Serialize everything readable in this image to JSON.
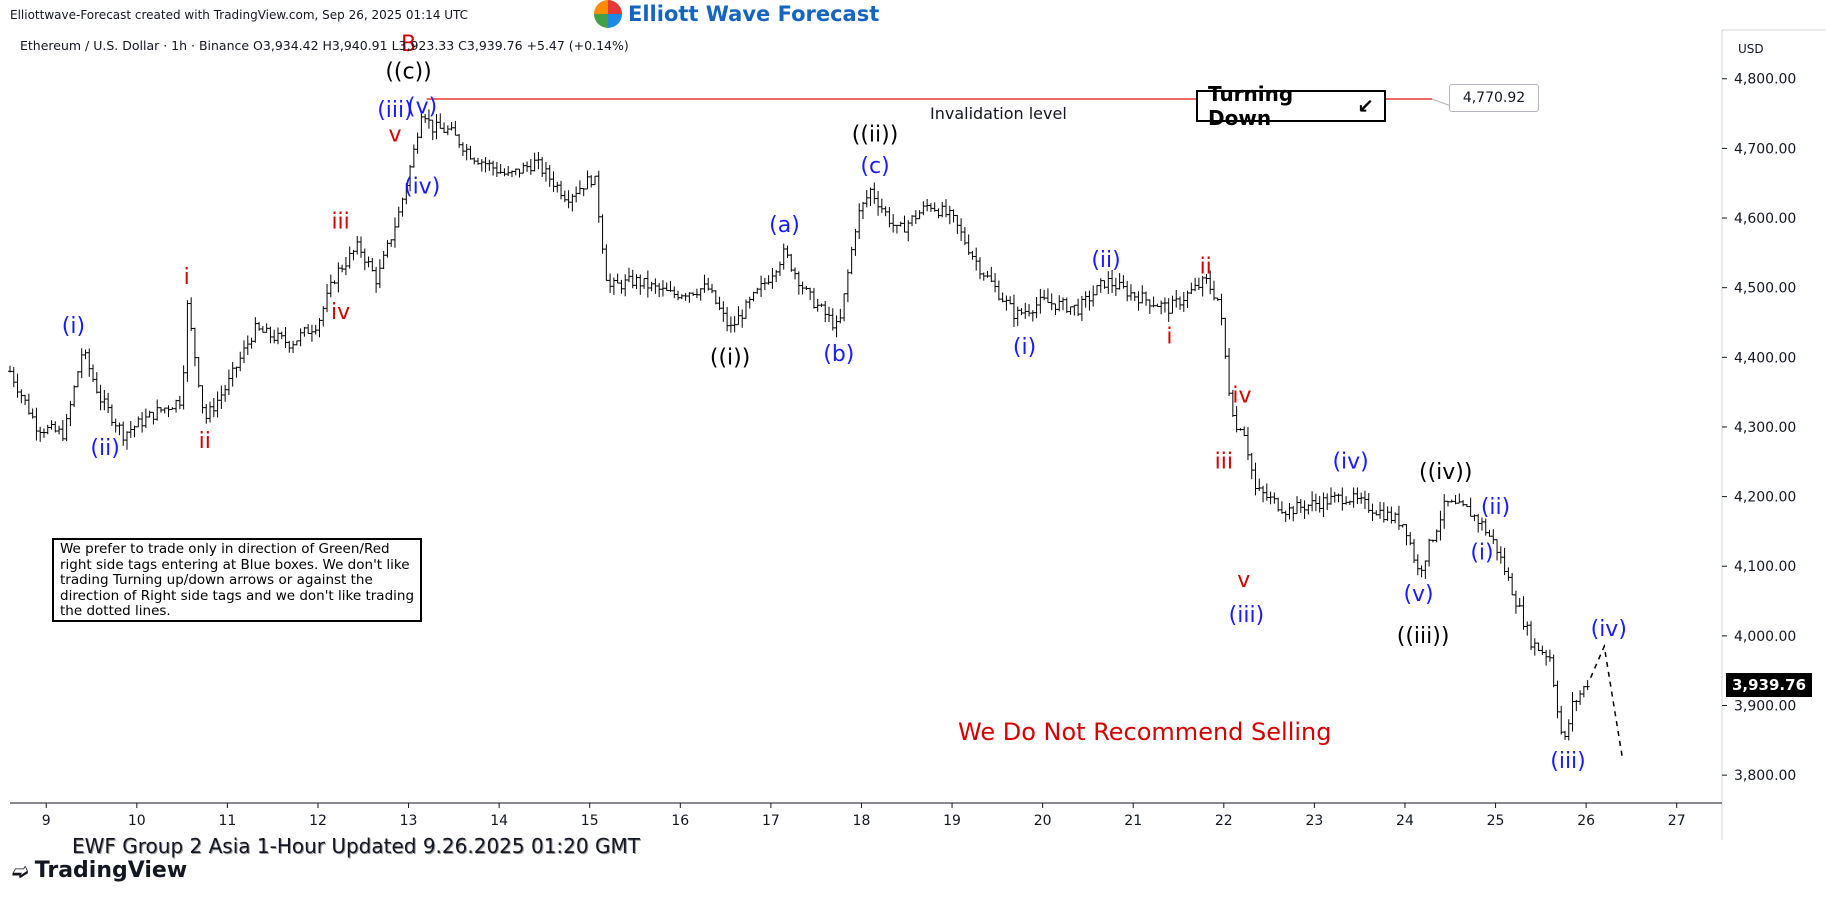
{
  "header": {
    "credit": "Elliottwave-Forecast created with TradingView.com, Sep 26, 2025 01:14 UTC",
    "brand": "Elliott Wave Forecast",
    "brand_icon": "ewf-logo-icon"
  },
  "symbol_line": "Ethereum / U.S. Dollar · 1h · Binance  O3,934.42  H3,940.91  L3,923.33  C3,939.76  +5.47 (+0.14%)",
  "note_text": "We prefer to trade only in direction of Green/Red right side tags entering at Blue boxes. We don't like trading Turning up/down arrows or against the direction of Right side tags and we don't like trading the dotted lines.",
  "turning_label": "Turning Down",
  "turning_icon": "arrow-down-left-icon",
  "invalidation_label": "Invalidation level",
  "invalidation_price": "4,770.92",
  "no_sell_text": "We Do Not Recommend Selling",
  "currency": "USD",
  "current_price": "3,939.76",
  "footer_text": "EWF Group 2 Asia 1-Hour Updated 9.26.2025 01:20 GMT",
  "tradingview_brand": "TradingView",
  "colors": {
    "red": "#d50000",
    "blue": "#1a1aff",
    "black": "#000000",
    "invalidation_line": "#e53935"
  },
  "chart_data": {
    "type": "line",
    "title": "",
    "xlabel": "",
    "ylabel": "",
    "ylim": [
      3760,
      4870
    ],
    "xlim": [
      8.6,
      27.5
    ],
    "x_ticks": [
      9,
      10,
      11,
      12,
      13,
      14,
      15,
      16,
      17,
      18,
      19,
      20,
      21,
      22,
      23,
      24,
      25,
      26,
      27
    ],
    "x_tick_labels": [
      "9",
      "10",
      "11",
      "12",
      "13",
      "14",
      "15",
      "16",
      "17",
      "18",
      "19",
      "20",
      "21",
      "22",
      "23",
      "24",
      "25",
      "26",
      "27"
    ],
    "y_ticks": [
      3800,
      3900,
      4000,
      4100,
      4200,
      4300,
      4400,
      4500,
      4600,
      4700,
      4800
    ],
    "y_tick_labels": [
      "3,800.00",
      "3,900.00",
      "4,000.00",
      "4,100.00",
      "4,200.00",
      "4,300.00",
      "4,400.00",
      "4,500.00",
      "4,600.00",
      "4,700.00",
      "4,800.00"
    ],
    "grid": false,
    "price_path": {
      "x": [
        8.6,
        8.9,
        9.2,
        9.4,
        9.6,
        9.85,
        10.2,
        10.5,
        10.55,
        10.75,
        11.0,
        11.3,
        11.7,
        12.0,
        12.2,
        12.45,
        12.65,
        12.9,
        13.05,
        13.15,
        13.25,
        13.45,
        13.7,
        14.1,
        14.4,
        14.75,
        15.05,
        15.2,
        15.5,
        15.9,
        16.3,
        16.55,
        16.95,
        17.15,
        17.4,
        17.75,
        17.95,
        18.1,
        18.4,
        18.75,
        19.0,
        19.3,
        19.7,
        20.0,
        20.4,
        20.7,
        21.0,
        21.4,
        21.8,
        21.95,
        22.05,
        22.15,
        22.2,
        22.35,
        22.7,
        23.0,
        23.35,
        23.7,
        24.0,
        24.15,
        24.45,
        24.7,
        24.85,
        25.0,
        25.2,
        25.4,
        25.6,
        25.75,
        25.85,
        26.05
      ],
      "y": [
        4380,
        4300,
        4290,
        4410,
        4340,
        4290,
        4320,
        4340,
        4480,
        4310,
        4360,
        4440,
        4420,
        4450,
        4520,
        4560,
        4510,
        4610,
        4690,
        4760,
        4730,
        4725,
        4690,
        4660,
        4680,
        4630,
        4660,
        4500,
        4510,
        4490,
        4500,
        4440,
        4510,
        4550,
        4490,
        4440,
        4600,
        4640,
        4580,
        4620,
        4600,
        4530,
        4460,
        4480,
        4470,
        4510,
        4490,
        4470,
        4510,
        4480,
        4360,
        4290,
        4310,
        4210,
        4180,
        4190,
        4200,
        4180,
        4160,
        4090,
        4190,
        4180,
        4160,
        4130,
        4060,
        3990,
        3970,
        3840,
        3900,
        3940
      ]
    },
    "forecast_path": {
      "x": [
        26.05,
        26.2,
        26.4
      ],
      "y": [
        3940,
        3985,
        3825
      ]
    },
    "invalidation": {
      "y": 4770.92,
      "x_start": 13.2,
      "x_end": 24.3
    },
    "wave_labels": [
      {
        "text": "B",
        "x": 13.0,
        "y": 4840,
        "color": "red"
      },
      {
        "text": "((c))",
        "x": 13.0,
        "y": 4800,
        "color": "black"
      },
      {
        "text": "(iii)",
        "x": 12.85,
        "y": 4745,
        "color": "blue"
      },
      {
        "text": "(v)",
        "x": 13.15,
        "y": 4750,
        "color": "blue"
      },
      {
        "text": "v",
        "x": 12.85,
        "y": 4710,
        "color": "red"
      },
      {
        "text": "(iv)",
        "x": 13.15,
        "y": 4635,
        "color": "blue"
      },
      {
        "text": "iii",
        "x": 12.25,
        "y": 4585,
        "color": "red"
      },
      {
        "text": "iv",
        "x": 12.25,
        "y": 4455,
        "color": "red"
      },
      {
        "text": "i",
        "x": 10.55,
        "y": 4505,
        "color": "red"
      },
      {
        "text": "ii",
        "x": 10.75,
        "y": 4270,
        "color": "red"
      },
      {
        "text": "(i)",
        "x": 9.3,
        "y": 4435,
        "color": "blue"
      },
      {
        "text": "(ii)",
        "x": 9.65,
        "y": 4260,
        "color": "blue"
      },
      {
        "text": "((i))",
        "x": 16.55,
        "y": 4390,
        "color": "black"
      },
      {
        "text": "(a)",
        "x": 17.15,
        "y": 4580,
        "color": "blue"
      },
      {
        "text": "(b)",
        "x": 17.75,
        "y": 4395,
        "color": "blue"
      },
      {
        "text": "(c)",
        "x": 18.15,
        "y": 4665,
        "color": "blue"
      },
      {
        "text": "((ii))",
        "x": 18.15,
        "y": 4710,
        "color": "black"
      },
      {
        "text": "(i)",
        "x": 19.8,
        "y": 4405,
        "color": "blue"
      },
      {
        "text": "(ii)",
        "x": 20.7,
        "y": 4530,
        "color": "blue"
      },
      {
        "text": "ii",
        "x": 21.8,
        "y": 4520,
        "color": "red"
      },
      {
        "text": "i",
        "x": 21.4,
        "y": 4420,
        "color": "red"
      },
      {
        "text": "iv",
        "x": 22.2,
        "y": 4335,
        "color": "red"
      },
      {
        "text": "iii",
        "x": 22.0,
        "y": 4240,
        "color": "red"
      },
      {
        "text": "v",
        "x": 22.22,
        "y": 4070,
        "color": "red"
      },
      {
        "text": "(iii)",
        "x": 22.25,
        "y": 4020,
        "color": "blue"
      },
      {
        "text": "(iv)",
        "x": 23.4,
        "y": 4240,
        "color": "blue"
      },
      {
        "text": "((iv))",
        "x": 24.45,
        "y": 4225,
        "color": "black"
      },
      {
        "text": "(ii)",
        "x": 25.0,
        "y": 4175,
        "color": "blue"
      },
      {
        "text": "(i)",
        "x": 24.85,
        "y": 4110,
        "color": "blue"
      },
      {
        "text": "(v)",
        "x": 24.15,
        "y": 4050,
        "color": "blue"
      },
      {
        "text": "((iii))",
        "x": 24.2,
        "y": 3990,
        "color": "black"
      },
      {
        "text": "(iv)",
        "x": 26.25,
        "y": 4000,
        "color": "blue"
      },
      {
        "text": "(iii)",
        "x": 25.8,
        "y": 3810,
        "color": "blue"
      }
    ]
  }
}
